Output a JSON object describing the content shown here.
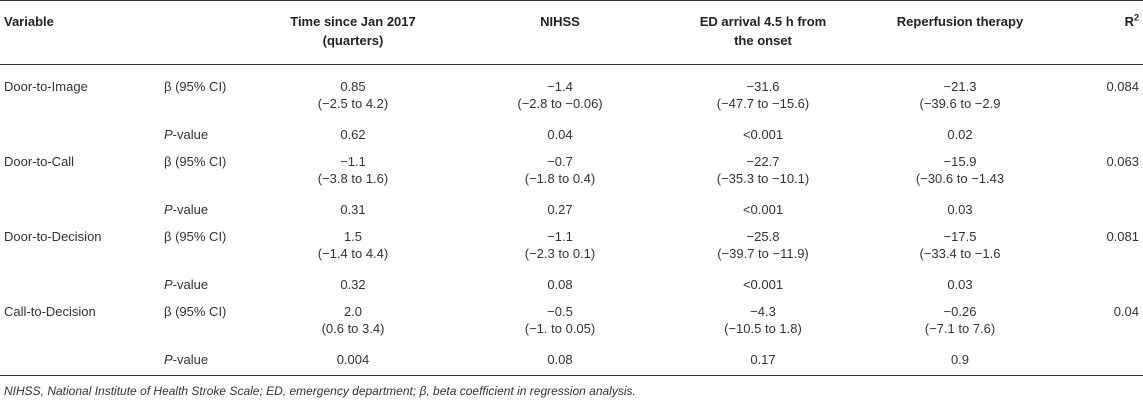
{
  "header": {
    "variable": "Variable",
    "time_line1": "Time since Jan 2017",
    "time_line2": "(quarters)",
    "nihss": "NIHSS",
    "ed_line1": "ED arrival 4.5 h from",
    "ed_line2": "the onset",
    "reperfusion": "Reperfusion therapy",
    "r2_base": "R",
    "r2_sup": "2"
  },
  "labels": {
    "beta": "β (95% CI)",
    "p_italic": "P",
    "p_rest": "-value"
  },
  "rows": [
    {
      "variable": "Door-to-Image",
      "time_beta": "0.85",
      "time_ci": "(−2.5 to 4.2)",
      "time_p": "0.62",
      "nihss_beta": "−1.4",
      "nihss_ci": "(−2.8 to −0.06)",
      "nihss_p": "0.04",
      "ed_beta": "−31.6",
      "ed_ci": "(−47.7 to −15.6)",
      "ed_p": "<0.001",
      "rep_beta": "−21.3",
      "rep_ci": "(−39.6 to −2.9",
      "rep_p": "0.02",
      "r2": "0.084"
    },
    {
      "variable": "Door-to-Call",
      "time_beta": "−1.1",
      "time_ci": "(−3.8 to 1.6)",
      "time_p": "0.31",
      "nihss_beta": "−0.7",
      "nihss_ci": "(−1.8 to 0.4)",
      "nihss_p": "0.27",
      "ed_beta": "−22.7",
      "ed_ci": "(−35.3 to −10.1)",
      "ed_p": "<0.001",
      "rep_beta": "−15.9",
      "rep_ci": "(−30.6 to −1.43",
      "rep_p": "0.03",
      "r2": "0.063"
    },
    {
      "variable": "Door-to-Decision",
      "time_beta": "1.5",
      "time_ci": "(−1.4 to 4.4)",
      "time_p": "0.32",
      "nihss_beta": "−1.1",
      "nihss_ci": "(−2.3 to 0.1)",
      "nihss_p": "0.08",
      "ed_beta": "−25.8",
      "ed_ci": "(−39.7 to −11.9)",
      "ed_p": "<0.001",
      "rep_beta": "−17.5",
      "rep_ci": "(−33.4 to −1.6",
      "rep_p": "0.03",
      "r2": "0.081"
    },
    {
      "variable": "Call-to-Decision",
      "time_beta": "2.0",
      "time_ci": "(0.6 to 3.4)",
      "time_p": "0.004",
      "nihss_beta": "−0.5",
      "nihss_ci": "(−1. to 0.05)",
      "nihss_p": "0.08",
      "ed_beta": "−4.3",
      "ed_ci": "(−10.5 to 1.8)",
      "ed_p": "0.17",
      "rep_beta": "−0.26",
      "rep_ci": "(−7.1 to 7.6)",
      "rep_p": "0.9",
      "r2": "0.04"
    }
  ],
  "footnote": "NIHSS, National Institute of Health Stroke Scale; ED, emergency department; β, beta coefficient in regression analysis."
}
